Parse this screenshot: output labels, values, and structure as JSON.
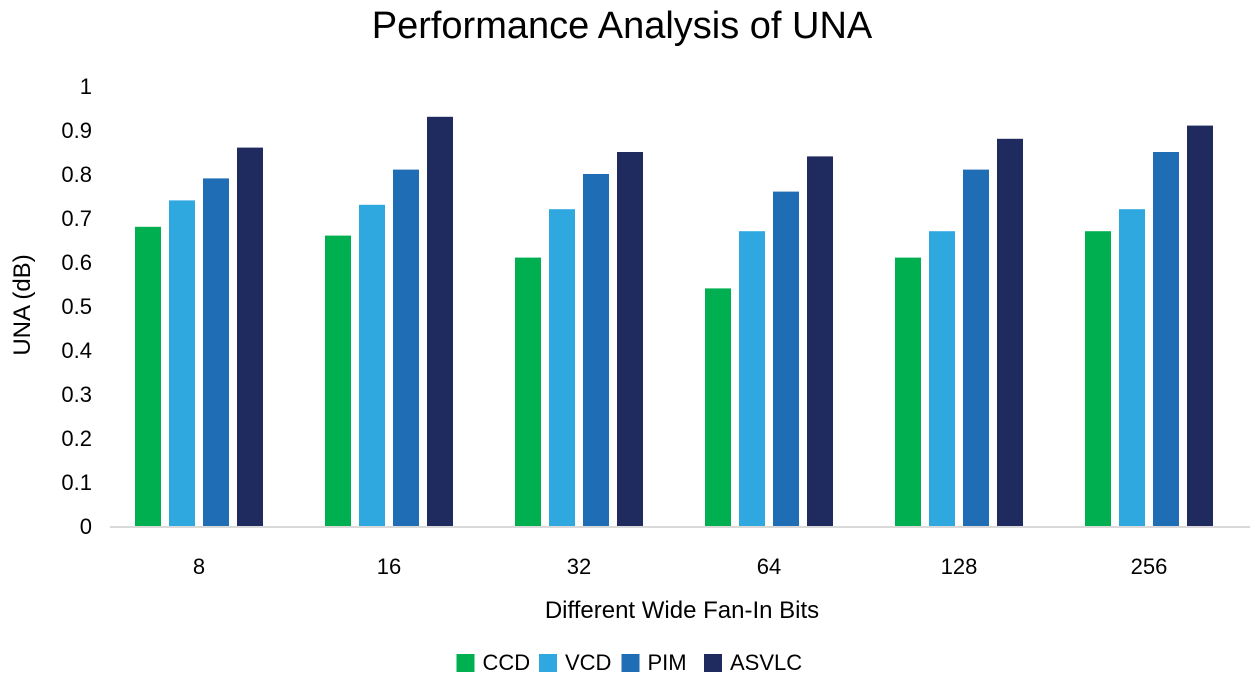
{
  "chart_data": {
    "type": "bar",
    "title": "Performance Analysis of UNA",
    "xlabel": "Different Wide Fan-In Bits",
    "ylabel": "UNA (dB)",
    "ylim": [
      0,
      1
    ],
    "yticks": [
      "0",
      "0.1",
      "0.2",
      "0.3",
      "0.4",
      "0.5",
      "0.6",
      "0.7",
      "0.8",
      "0.9",
      "1"
    ],
    "categories": [
      "8",
      "16",
      "32",
      "64",
      "128",
      "256"
    ],
    "series": [
      {
        "name": "CCD",
        "color": "#00b050",
        "values": [
          0.68,
          0.66,
          0.61,
          0.54,
          0.61,
          0.67
        ]
      },
      {
        "name": "VCD",
        "color": "#2fa8e0",
        "values": [
          0.74,
          0.73,
          0.72,
          0.67,
          0.67,
          0.72
        ]
      },
      {
        "name": "PIM",
        "color": "#1f6db5",
        "values": [
          0.79,
          0.81,
          0.8,
          0.76,
          0.81,
          0.85
        ]
      },
      {
        "name": "ASVLC",
        "color": "#1f2a5e",
        "values": [
          0.86,
          0.93,
          0.85,
          0.84,
          0.88,
          0.91
        ]
      }
    ],
    "grid": false,
    "legend_position": "bottom-center"
  }
}
